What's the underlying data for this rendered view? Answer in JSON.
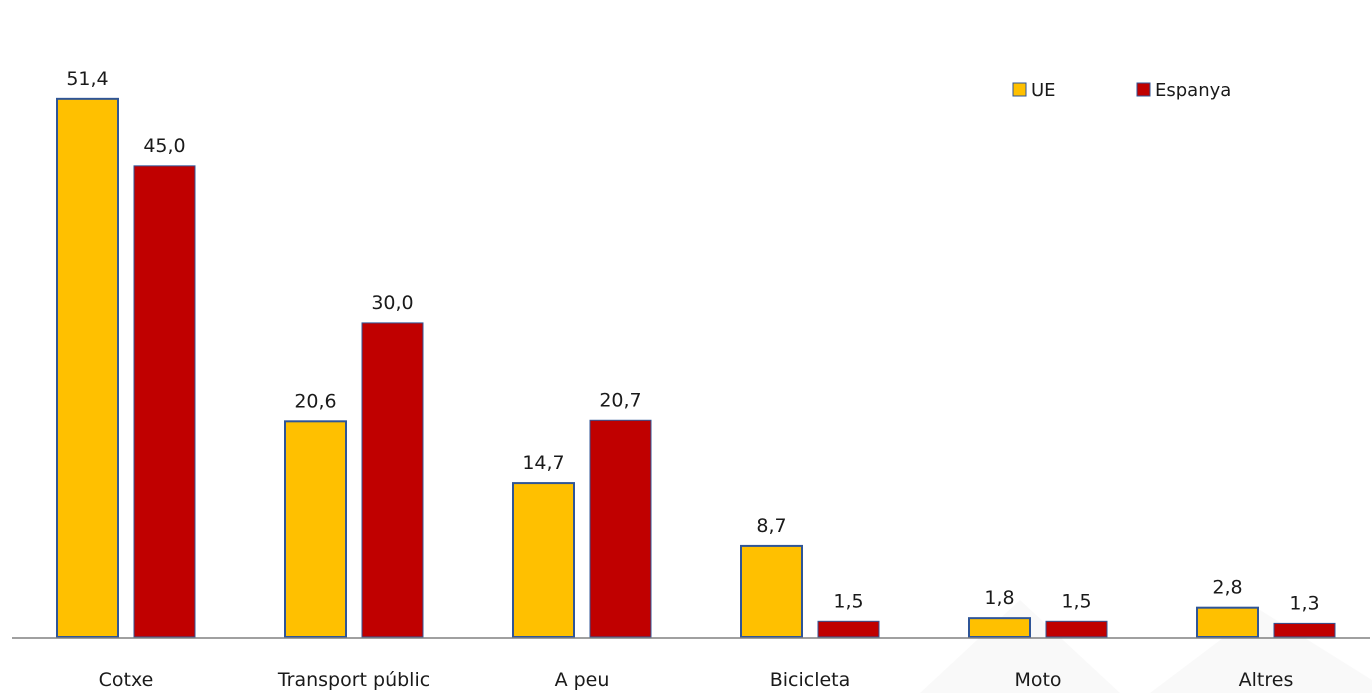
{
  "chart_data": {
    "type": "bar",
    "title": "",
    "xlabel": "",
    "ylabel": "",
    "ylim": [
      0,
      60
    ],
    "grid": false,
    "legend_position": "top-right",
    "categories": [
      "Cotxe",
      "Transport públic",
      "A peu",
      "Bicicleta",
      "Moto",
      "Altres"
    ],
    "series": [
      {
        "name": "UE",
        "color": "#FFC000",
        "values": [
          51.4,
          20.6,
          14.7,
          8.7,
          1.8,
          2.8
        ],
        "labels": [
          "51,4",
          "20,6",
          "14,7",
          "8,7",
          "1,8",
          "2,8"
        ]
      },
      {
        "name": "Espanya",
        "color": "#C00000",
        "values": [
          45.0,
          30.0,
          20.7,
          1.5,
          1.5,
          1.3
        ],
        "labels": [
          "45,0",
          "30,0",
          "20,7",
          "1,5",
          "1,5",
          "1,3"
        ]
      }
    ],
    "bar_outline_color": "#2F5597",
    "axis_color": "#808080"
  }
}
